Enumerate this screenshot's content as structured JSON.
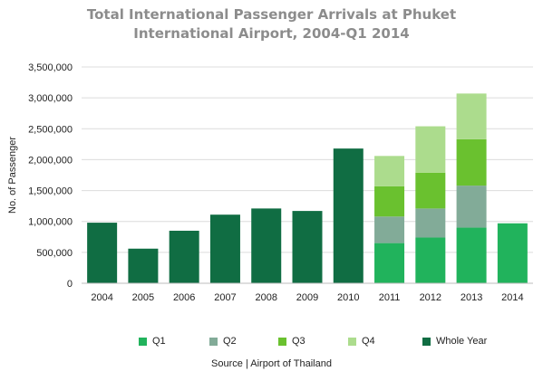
{
  "chart_data": {
    "type": "bar",
    "stacked": true,
    "title_line1": "Total International Passenger Arrivals at Phuket",
    "title_line2": "International Airport, 2004-Q1 2014",
    "xlabel": "",
    "ylabel": "No. of Passenger",
    "ylim": [
      0,
      3500000
    ],
    "yticks": [
      0,
      500000,
      1000000,
      1500000,
      2000000,
      2500000,
      3000000,
      3500000
    ],
    "ytick_labels": [
      "0",
      "500,000",
      "1,000,000",
      "1,500,000",
      "2,000,000",
      "2,500,000",
      "3,000,000",
      "3,500,000"
    ],
    "grid": "horizontal",
    "legend_position": "bottom",
    "categories": [
      "2004",
      "2005",
      "2006",
      "2007",
      "2008",
      "2009",
      "2010",
      "2011",
      "2012",
      "2013",
      "2014"
    ],
    "series": [
      {
        "name": "Q1",
        "color": "#21b35c",
        "values": [
          0,
          0,
          0,
          0,
          0,
          0,
          0,
          650000,
          740000,
          900000,
          970000
        ]
      },
      {
        "name": "Q2",
        "color": "#82ab98",
        "values": [
          0,
          0,
          0,
          0,
          0,
          0,
          0,
          430000,
          470000,
          680000,
          0
        ]
      },
      {
        "name": "Q3",
        "color": "#6ac12f",
        "values": [
          0,
          0,
          0,
          0,
          0,
          0,
          0,
          490000,
          580000,
          750000,
          0
        ]
      },
      {
        "name": "Q4",
        "color": "#acdc8d",
        "values": [
          0,
          0,
          0,
          0,
          0,
          0,
          0,
          490000,
          750000,
          740000,
          0
        ]
      },
      {
        "name": "Whole Year",
        "color": "#106d43",
        "values": [
          980000,
          560000,
          850000,
          1110000,
          1210000,
          1170000,
          2180000,
          0,
          0,
          0,
          0
        ]
      }
    ]
  },
  "source": "Source | Airport of Thailand"
}
